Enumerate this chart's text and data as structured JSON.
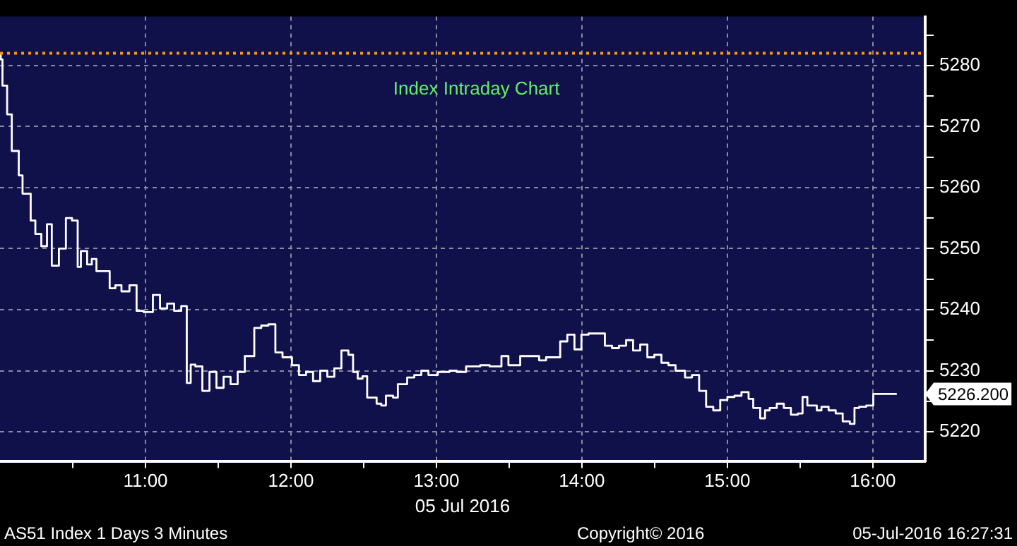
{
  "chart_data": {
    "type": "step",
    "title": "Index Intraday Chart",
    "xlabel": "05 Jul 2016",
    "x": [
      10.005,
      10.017,
      10.049,
      10.081,
      10.129,
      10.155,
      10.211,
      10.243,
      10.284,
      10.323,
      10.356,
      10.405,
      10.453,
      10.495,
      10.534,
      10.556,
      10.599,
      10.631,
      10.663,
      10.754,
      10.793,
      10.835,
      10.89,
      10.939,
      10.987,
      11.051,
      11.1,
      11.149,
      11.197,
      11.246,
      11.284,
      11.311,
      11.343,
      11.391,
      11.44,
      11.488,
      11.537,
      11.585,
      11.634,
      11.683,
      11.748,
      11.796,
      11.845,
      11.893,
      11.942,
      12.007,
      12.055,
      12.104,
      12.152,
      12.201,
      12.25,
      12.298,
      12.347,
      12.395,
      12.427,
      12.459,
      12.492,
      12.524,
      12.589,
      12.621,
      12.653,
      12.702,
      12.735,
      12.799,
      12.848,
      12.896,
      12.945,
      13.01,
      13.09,
      13.139,
      13.204,
      13.301,
      13.366,
      13.447,
      13.495,
      13.576,
      13.706,
      13.754,
      13.851,
      13.9,
      13.949,
      13.997,
      14.046,
      14.158,
      14.207,
      14.255,
      14.304,
      14.352,
      14.401,
      14.45,
      14.498,
      14.547,
      14.595,
      14.644,
      14.709,
      14.757,
      14.806,
      14.854,
      14.903,
      14.951,
      15.0,
      15.049,
      15.097,
      15.146,
      15.178,
      15.226,
      15.259,
      15.291,
      15.34,
      15.388,
      15.437,
      15.485,
      15.517,
      15.55,
      15.615,
      15.647,
      15.696,
      15.745,
      15.793,
      15.842,
      15.874,
      15.906,
      15.955,
      16.003,
      16.149,
      16.165
    ],
    "series": [
      {
        "color": "#ffffff",
        "values": [
          5282,
          5281,
          5276.7,
          5272,
          5266,
          5262,
          5259,
          5254.6,
          5252.4,
          5250.4,
          5254,
          5247.2,
          5250,
          5255,
          5254.6,
          5247,
          5249.6,
          5247.4,
          5248.3,
          5246.3,
          5243.5,
          5244,
          5243,
          5244,
          5239.8,
          5239.6,
          5242.4,
          5240.2,
          5241,
          5239.8,
          5240.6,
          5228,
          5231,
          5230.7,
          5226.7,
          5229.8,
          5227.2,
          5229,
          5227.8,
          5229.8,
          5232.4,
          5237,
          5237.4,
          5237.6,
          5233,
          5232.2,
          5230.9,
          5229.3,
          5229.8,
          5228.3,
          5230,
          5229,
          5230.4,
          5233.3,
          5232.6,
          5229.8,
          5228.7,
          5229.1,
          5225.6,
          5224.6,
          5224.3,
          5225.9,
          5225.6,
          5227.8,
          5228.9,
          5229.3,
          5230,
          5229.3,
          5229.8,
          5230,
          5229.8,
          5230.7,
          5230.9,
          5230.7,
          5232.4,
          5230.9,
          5232.4,
          5231.7,
          5232.2,
          5234.8,
          5235.9,
          5233.5,
          5235.9,
          5236.1,
          5234.1,
          5233.7,
          5234.1,
          5235,
          5233.3,
          5234.3,
          5232.2,
          5232.6,
          5231.3,
          5230.9,
          5230,
          5228.9,
          5229.3,
          5226.7,
          5224.1,
          5223.5,
          5225.2,
          5225.7,
          5225.9,
          5226.5,
          5225.4,
          5223.9,
          5222.2,
          5223.5,
          5223.9,
          5224.6,
          5223.9,
          5222.8,
          5223,
          5225.7,
          5224.3,
          5223.5,
          5224.1,
          5223.5,
          5223,
          5221.7,
          5221.3,
          5223.9,
          5224.1,
          5224.3,
          5226.2,
          5226.2
        ]
      }
    ],
    "xlim": [
      10,
      16.36
    ],
    "xticks": [
      {
        "value": 10.5,
        "label": null
      },
      {
        "value": 11,
        "label": "11:00"
      },
      {
        "value": 11.5,
        "label": null
      },
      {
        "value": 12,
        "label": "12:00"
      },
      {
        "value": 12.5,
        "label": null
      },
      {
        "value": 13,
        "label": "13:00"
      },
      {
        "value": 13.5,
        "label": null
      },
      {
        "value": 14,
        "label": "14:00"
      },
      {
        "value": 14.5,
        "label": null
      },
      {
        "value": 15,
        "label": "15:00"
      },
      {
        "value": 15.5,
        "label": null
      },
      {
        "value": 16,
        "label": "16:00"
      }
    ],
    "ylim": [
      5215.2,
      5288
    ],
    "yticks": [
      5220,
      {
        "value": 5225,
        "label": null
      },
      5230,
      {
        "value": 5235,
        "label": null
      },
      5240,
      {
        "value": 5245,
        "label": null
      },
      5250,
      {
        "value": 5255,
        "label": null
      },
      5260,
      {
        "value": 5265,
        "label": null
      },
      5270,
      {
        "value": 5275,
        "label": null
      },
      5280,
      {
        "value": 5285,
        "label": null
      }
    ],
    "grid": true,
    "legend": false,
    "marker": "none",
    "line_style": "solid",
    "ref_lines": [
      {
        "axis": "y",
        "value": 5282,
        "color": "#ff9900",
        "line_style": "dotted"
      }
    ],
    "annotations": [
      {
        "text": "5226.200",
        "x": 16.165,
        "y": 5226.2
      },
      "AS51 Index 1 Days 3 Minutes",
      "Copyright© 2016",
      "05-Jul-2016 16:27:31"
    ]
  }
}
